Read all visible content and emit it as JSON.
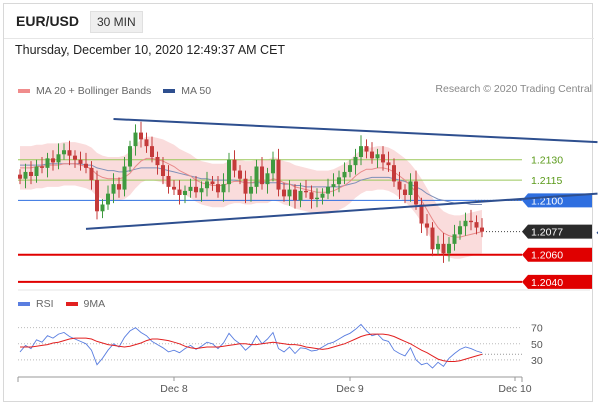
{
  "header": {
    "symbol": "EUR/USD",
    "timeframe": "30 MIN",
    "datetime": "Thursday, December 10, 2020 12:49:37 AM CET",
    "credit": "Research © 2020 Trading Central"
  },
  "legend_main": [
    {
      "label": "MA 20 + Bollinger Bands",
      "color": "#f08c8c"
    },
    {
      "label": "MA 50",
      "color": "#2e4f8f"
    }
  ],
  "legend_rsi": [
    {
      "label": "RSI",
      "color": "#5a7ee0"
    },
    {
      "label": "9MA",
      "color": "#e22020"
    }
  ],
  "chart_data": {
    "type": "candlestick",
    "price_range": [
      1.2034,
      1.2174
    ],
    "x_ticks": [
      "Dec 8",
      "Dec 9",
      "Dec 10"
    ],
    "x_tick_index": [
      28,
      60,
      90
    ],
    "levels": [
      {
        "value": 1.213,
        "label": "1.2130",
        "style": "green-line"
      },
      {
        "value": 1.2115,
        "label": "1.2115",
        "style": "green-line"
      },
      {
        "value": 1.21,
        "label": "1.2100",
        "style": "blue-tag"
      },
      {
        "value": 1.2077,
        "label": "1.2077",
        "style": "current-price"
      },
      {
        "value": 1.206,
        "label": "1.2060",
        "style": "red-tag"
      },
      {
        "value": 1.204,
        "label": "1.2040",
        "style": "red-tag"
      }
    ],
    "closes": [
      1.2116,
      1.2121,
      1.2118,
      1.2125,
      1.2124,
      1.2131,
      1.2128,
      1.2134,
      1.2137,
      1.2133,
      1.213,
      1.2127,
      1.2124,
      1.2115,
      1.2092,
      1.2097,
      1.2105,
      1.2112,
      1.2108,
      1.2125,
      1.214,
      1.215,
      1.2145,
      1.214,
      1.2132,
      1.2126,
      1.2118,
      1.211,
      1.2108,
      1.2104,
      1.2107,
      1.211,
      1.2106,
      1.2109,
      1.2114,
      1.2112,
      1.2106,
      1.2112,
      1.213,
      1.2122,
      1.2116,
      1.2105,
      1.211,
      1.2125,
      1.2112,
      1.212,
      1.213,
      1.2108,
      1.2103,
      1.2108,
      1.21,
      1.2107,
      1.2106,
      1.2101,
      1.2102,
      1.2105,
      1.211,
      1.2112,
      1.2117,
      1.2121,
      1.2126,
      1.2132,
      1.214,
      1.2136,
      1.2131,
      1.2134,
      1.2128,
      1.2126,
      1.2114,
      1.2108,
      1.2104,
      1.2114,
      1.2097,
      1.2083,
      1.208,
      1.2064,
      1.2068,
      1.2061,
      1.2068,
      1.2075,
      1.2081,
      1.2085,
      1.2084,
      1.208,
      1.2077
    ],
    "ma20": [
      1.2124,
      1.2124,
      1.2124,
      1.2125,
      1.2125,
      1.2126,
      1.2126,
      1.2126,
      1.2127,
      1.2127,
      1.2127,
      1.2126,
      1.2125,
      1.2123,
      1.2119,
      1.2117,
      1.2116,
      1.2116,
      1.2116,
      1.2117,
      1.212,
      1.2125,
      1.2129,
      1.2131,
      1.2131,
      1.213,
      1.2129,
      1.2127,
      1.2125,
      1.2122,
      1.212,
      1.2118,
      1.2115,
      1.2113,
      1.2112,
      1.2111,
      1.2111,
      1.2111,
      1.2113,
      1.2114,
      1.2114,
      1.2113,
      1.2113,
      1.2114,
      1.2114,
      1.2114,
      1.2116,
      1.2115,
      1.2113,
      1.2112,
      1.211,
      1.2109,
      1.2108,
      1.2107,
      1.2106,
      1.2106,
      1.2106,
      1.2107,
      1.2109,
      1.2111,
      1.2114,
      1.2118,
      1.2121,
      1.2123,
      1.2123,
      1.2124,
      1.2124,
      1.2123,
      1.2121,
      1.2118,
      1.2115,
      1.2111,
      1.2106,
      1.21,
      1.2093,
      1.2086,
      1.208,
      1.2076,
      1.2074,
      1.2073,
      1.2073,
      1.2074,
      1.2075,
      1.2076,
      1.2077
    ],
    "ma50": [
      1.2126,
      1.2126,
      1.2126,
      1.2126,
      1.2126,
      1.2127,
      1.2127,
      1.2127,
      1.2127,
      1.2127,
      1.2127,
      1.2127,
      1.2126,
      1.2126,
      1.2124,
      1.2123,
      1.2122,
      1.2122,
      1.2121,
      1.2121,
      1.2122,
      1.2123,
      1.2124,
      1.2124,
      1.2124,
      1.2124,
      1.2123,
      1.2122,
      1.2121,
      1.212,
      1.2119,
      1.2118,
      1.2117,
      1.2116,
      1.2116,
      1.2115,
      1.2115,
      1.2115,
      1.2115,
      1.2115,
      1.2114,
      1.2113,
      1.2113,
      1.2113,
      1.2113,
      1.2113,
      1.2113,
      1.2113,
      1.2112,
      1.2112,
      1.2111,
      1.2111,
      1.211,
      1.211,
      1.211,
      1.211,
      1.211,
      1.211,
      1.211,
      1.2111,
      1.2112,
      1.2113,
      1.2115,
      1.2116,
      1.2117,
      1.2117,
      1.2117,
      1.2117,
      1.2116,
      1.2115,
      1.2114,
      1.2112,
      1.211,
      1.2108,
      1.2105,
      1.2103,
      1.2101,
      1.21,
      1.2099,
      1.2098,
      1.2098,
      1.2098,
      1.2097,
      1.2097,
      1.2097
    ],
    "bb_width": 0.0016,
    "trendlines": [
      {
        "from": [
          17,
          1.216
        ],
        "to": [
          105,
          1.2143
        ]
      },
      {
        "from": [
          12,
          1.2079
        ],
        "to": [
          105,
          1.2105
        ]
      },
      {
        "from": [
          105,
          1.2077
        ],
        "to": [
          114,
          1.204
        ]
      }
    ],
    "rsi": {
      "levels": [
        70,
        50,
        30
      ],
      "range": [
        15,
        82
      ],
      "rsi": [
        40,
        48,
        44,
        55,
        52,
        60,
        57,
        62,
        64,
        59,
        56,
        53,
        50,
        42,
        24,
        32,
        42,
        50,
        46,
        58,
        66,
        70,
        64,
        60,
        53,
        49,
        45,
        40,
        42,
        39,
        44,
        48,
        43,
        47,
        52,
        50,
        44,
        51,
        63,
        55,
        50,
        42,
        48,
        60,
        50,
        56,
        64,
        44,
        40,
        46,
        38,
        45,
        44,
        41,
        42,
        46,
        50,
        52,
        56,
        60,
        63,
        68,
        74,
        66,
        60,
        62,
        55,
        53,
        42,
        38,
        35,
        45,
        30,
        24,
        26,
        20,
        27,
        22,
        32,
        38,
        43,
        46,
        44,
        41,
        39
      ],
      "ma9": [
        46,
        46,
        46,
        47,
        48,
        49,
        51,
        52,
        54,
        56,
        57,
        57,
        57,
        56,
        53,
        51,
        49,
        48,
        47,
        46,
        47,
        49,
        51,
        54,
        56,
        56,
        55,
        54,
        52,
        50,
        47,
        45,
        44,
        45,
        46,
        46,
        46,
        47,
        48,
        49,
        50,
        50,
        49,
        49,
        50,
        51,
        52,
        51,
        50,
        49,
        49,
        48,
        46,
        45,
        44,
        43,
        44,
        46,
        48,
        50,
        53,
        56,
        59,
        61,
        62,
        62,
        62,
        61,
        59,
        56,
        53,
        50,
        46,
        42,
        39,
        35,
        31,
        29,
        28,
        28,
        29,
        31,
        33,
        35,
        37
      ]
    }
  }
}
